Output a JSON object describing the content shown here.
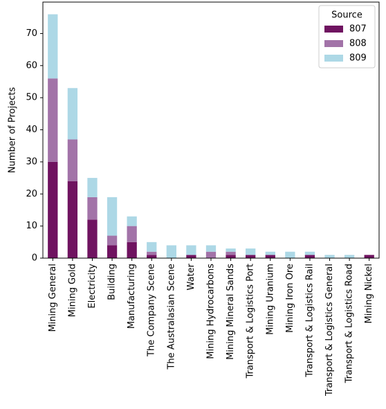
{
  "chart_data": {
    "type": "stacked_bar",
    "y_label": "Number of Projects",
    "legend_title": "Source",
    "legend_position": "upper right",
    "categories": [
      "Mining General",
      "Mining Gold",
      "Electricity",
      "Building",
      "Manufacturing",
      "The Company Scene",
      "The Australasian Scene",
      "Water",
      "Mining Hydrocarbons",
      "Mining Mineral Sands",
      "Transport & Logistics Port",
      "Mining Uranium",
      "Mining Iron Ore",
      "Transport & Logistics Rail",
      "Transport & Logistics General",
      "Transport & Logistics Road",
      "Mining Nickel"
    ],
    "series": [
      {
        "name": "807",
        "color": "#6f1360",
        "values": [
          30,
          24,
          12,
          4,
          5,
          1,
          0,
          1,
          0,
          1,
          1,
          1,
          0,
          1,
          0,
          0,
          1
        ]
      },
      {
        "name": "808",
        "color": "#a273a8",
        "values": [
          26,
          13,
          7,
          3,
          5,
          1,
          0,
          0,
          2,
          1,
          0,
          0,
          0,
          0,
          0,
          0,
          0
        ]
      },
      {
        "name": "809",
        "color": "#add8e6",
        "values": [
          20,
          16,
          6,
          12,
          3,
          3,
          4,
          3,
          2,
          1,
          2,
          1,
          2,
          1,
          1,
          1,
          0
        ]
      }
    ],
    "ylim": [
      0,
      79.8
    ],
    "yticks": [
      0,
      10,
      20,
      30,
      40,
      50,
      60,
      70
    ],
    "grid": false
  }
}
